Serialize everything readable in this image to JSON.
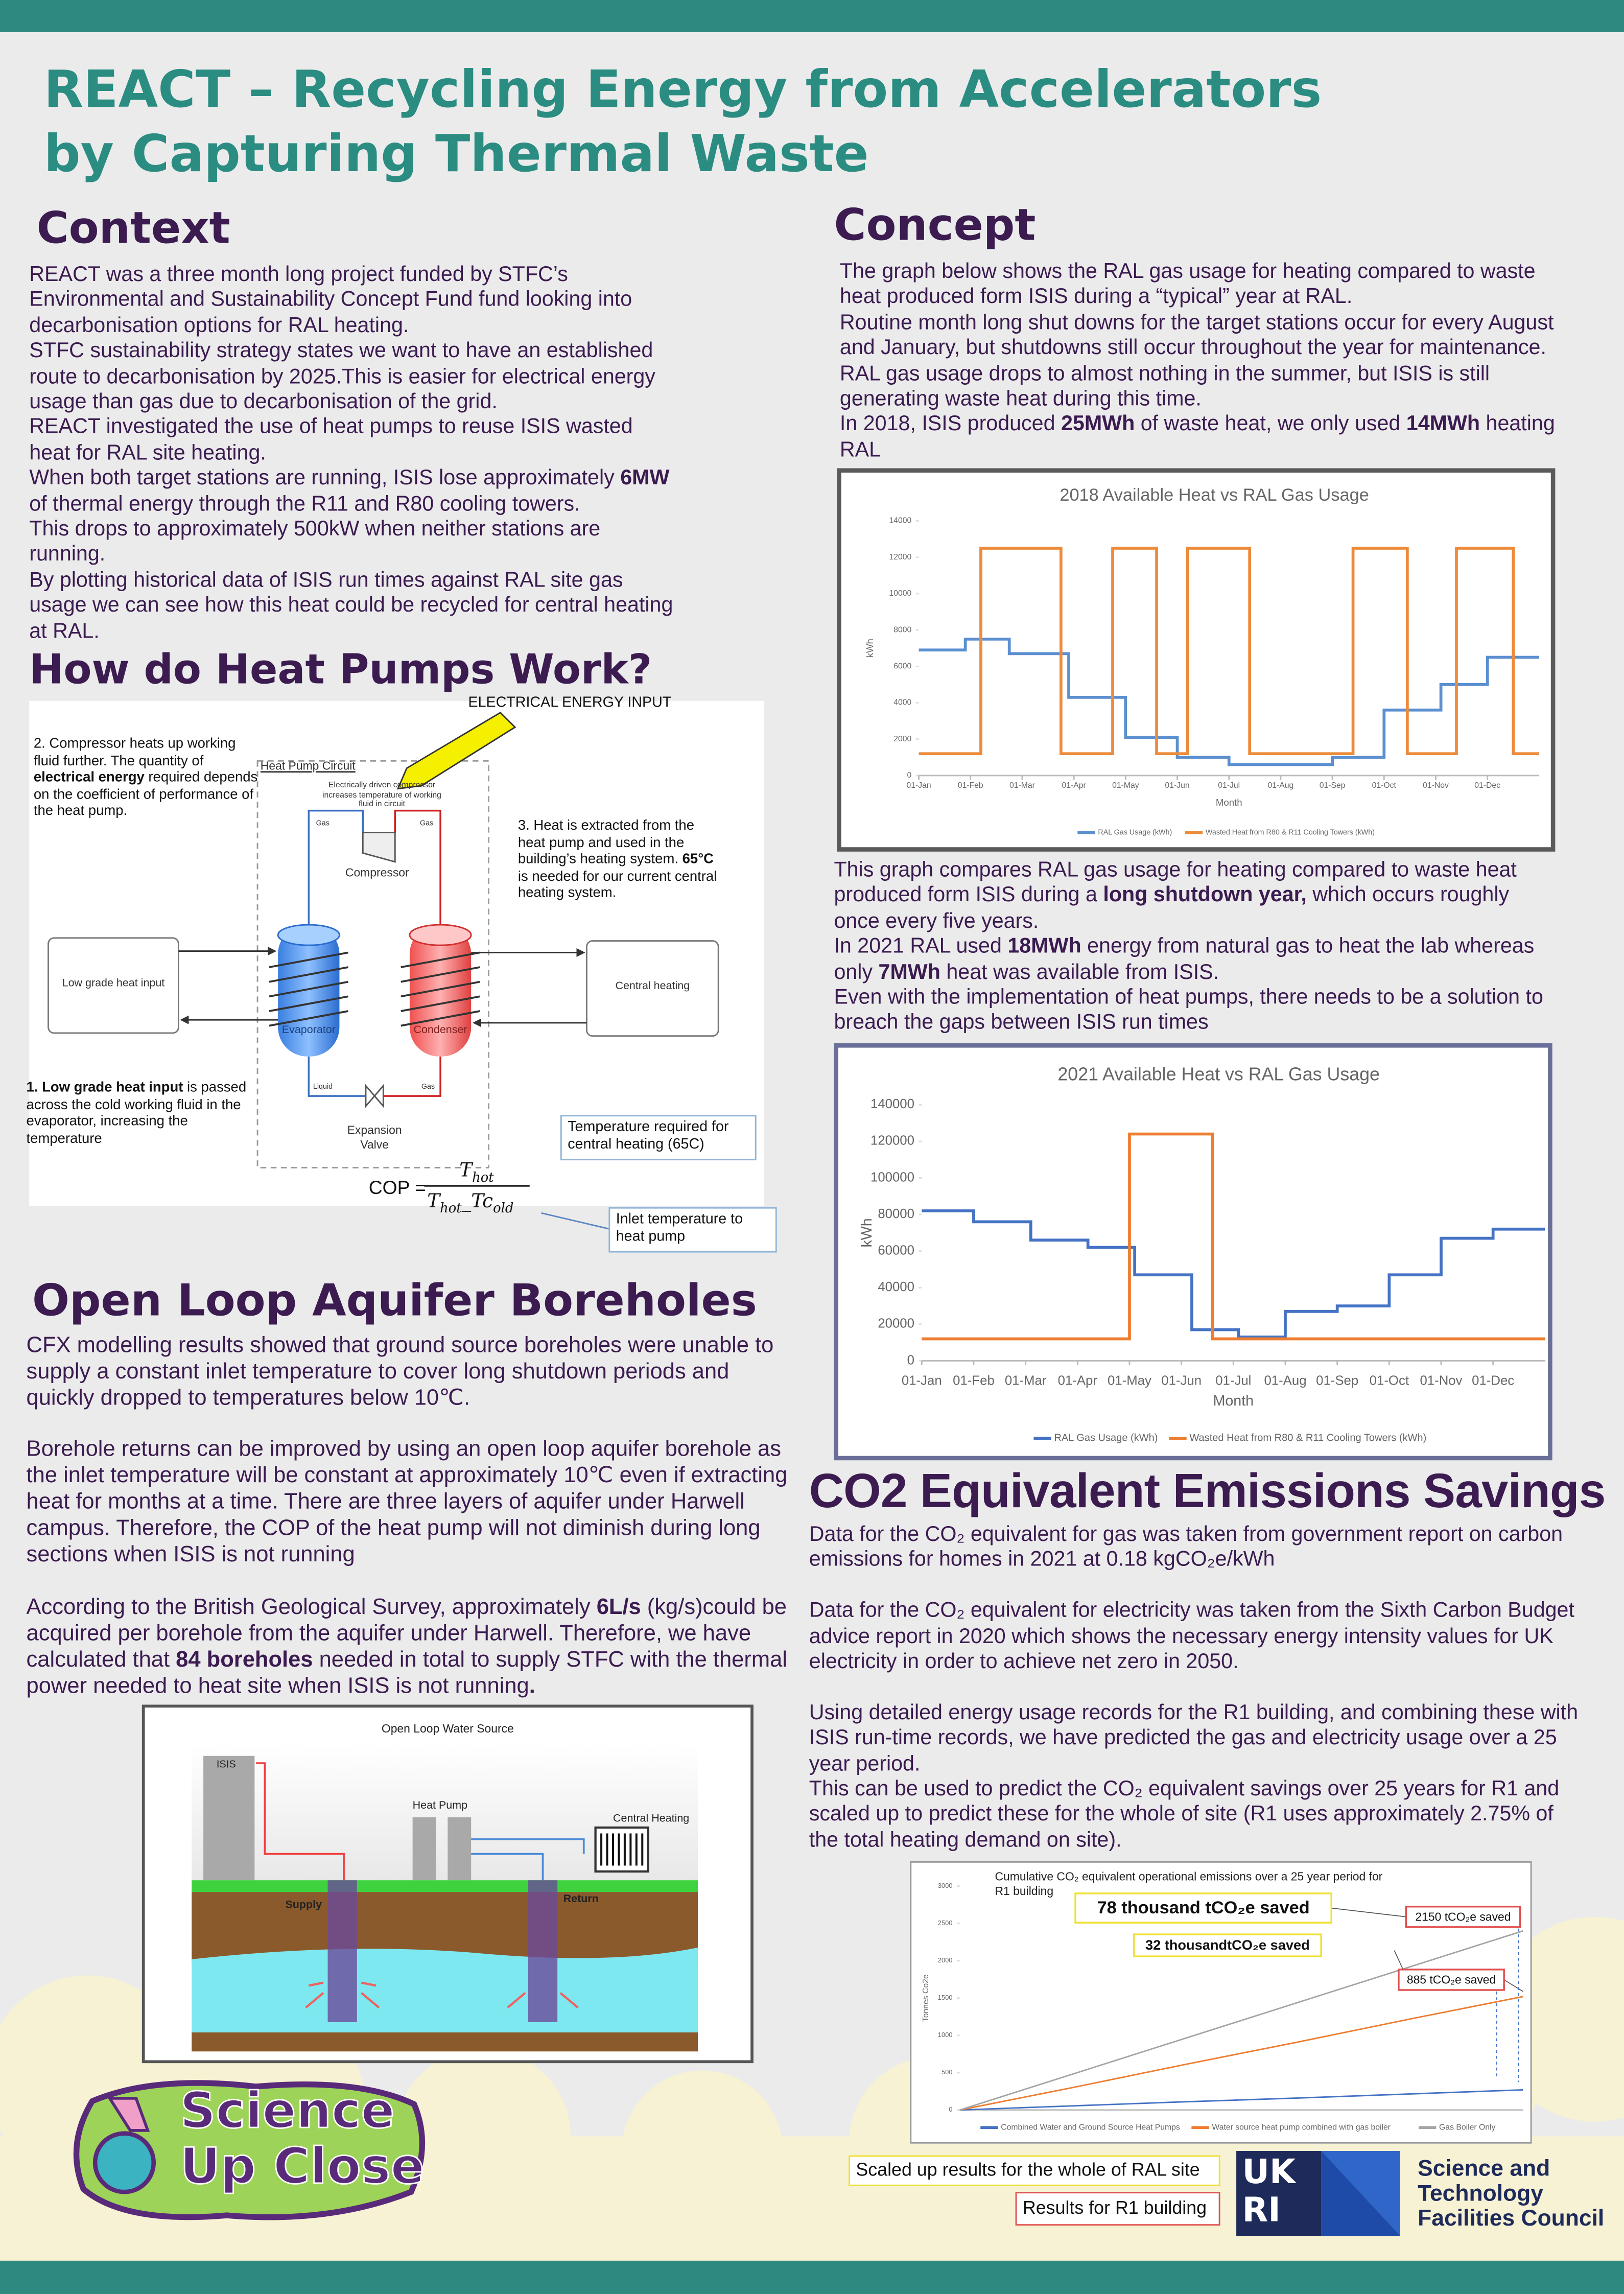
{
  "title": [
    "REACT – Recycling Energy from Accelerators",
    "by Capturing Thermal Waste"
  ],
  "context": {
    "heading": "Context",
    "paragraphs": [
      "REACT was a three month long project funded by STFC’s Environmental and Sustainability Concept Fund fund looking into decarbonisation options for RAL heating.",
      "STFC sustainability strategy states we want to have an established route to decarbonisation by 2025.This is easier for electrical energy usage than gas due to decarbonisation of the grid.",
      "REACT investigated the use of heat pumps to reuse ISIS wasted heat for RAL site heating.",
      [
        "When both target stations are running, ISIS lose approximately ",
        {
          "strong": "6MW"
        },
        " of thermal energy through the R11 and R80 cooling towers."
      ],
      "This drops to approximately 500kW when neither stations are running.",
      "By plotting historical data of ISIS run times against RAL site gas usage we can see how this heat could be recycled for central heating at RAL."
    ]
  },
  "heat_pumps": {
    "heading": "How do Heat Pumps Work?",
    "electrical_input": "ELECTRICAL ENERGY INPUT",
    "step2": [
      "2. Compressor heats up working fluid further. The quantity of ",
      {
        "strong": "electrical energy"
      },
      " required depends on the coefficient of performance of the heat pump."
    ],
    "circuit_label": "Heat Pump Circuit",
    "compressor_note": "Electrically driven compressor increases temperature of working fluid in circuit",
    "gas_in": "Gas",
    "gas_out": "Gas",
    "compressor": "Compressor",
    "step3": [
      "3. Heat is extracted from the heat pump and used in the building’s heating system. ",
      {
        "strong": "65°C"
      },
      " is needed for our current central heating system."
    ],
    "low_grade_box": "Low grade heat input",
    "central_heating_box": "Central heating",
    "evaporator": "Evaporator",
    "condenser": "Condenser",
    "liquid": "Liquid",
    "gas_return": "Gas",
    "expansion_valve": "Expansion Valve",
    "step1": [
      {
        "strong": "1. Low grade heat input"
      },
      " is passed across the cold working fluid in the evaporator, increasing the temperature"
    ],
    "temp_note": "Temperature required for central heating (65C)",
    "inlet_note": "Inlet temperature to heat pump",
    "cop": {
      "lhs": "COP =",
      "num": "T",
      "num_sub": "hot",
      "den": "T",
      "den_sub": "hot",
      "den_op": "_",
      "den2": "Tc",
      "den2_sub": "old"
    }
  },
  "open_loop": {
    "heading": "Open Loop Aquifer Boreholes",
    "paragraphs": [
      "CFX modelling results showed that ground source boreholes were unable to supply a constant inlet temperature to cover long shutdown periods and quickly dropped to temperatures below 10℃.",
      "Borehole returns can be improved by using an open loop aquifer borehole as the inlet temperature will be constant at approximately 10℃ even if extracting heat for months at a time. There are three layers of aquifer under Harwell campus. Therefore, the COP of the heat pump will not diminish during long sections when ISIS is not running",
      [
        "According to the British Geological Survey, approximately ",
        {
          "strong": "6L/s"
        },
        " (kg/s)could be acquired per borehole from the aquifer under Harwell. Therefore, we have calculated that ",
        {
          "strong": "84 boreholes"
        },
        " needed in total to supply STFC with the thermal power needed to heat site when ISIS is not running",
        {
          "strong": "."
        }
      ]
    ],
    "diagram": {
      "title": "Open Loop Water Source",
      "isis": "ISIS",
      "heat_pump": "Heat Pump",
      "central_heating": "Central Heating",
      "supply": "Supply",
      "return": "Return"
    }
  },
  "concept": {
    "heading": "Concept",
    "paragraphs": [
      "The graph below shows the RAL gas usage for heating compared to waste heat produced form ISIS during a “typical” year at RAL.",
      "Routine month long shut downs for the target stations occur for every August and January, but shutdowns still occur throughout the year for maintenance.",
      "RAL gas usage drops to almost nothing in the summer, but ISIS is still generating waste heat during this time.",
      [
        "In 2018, ISIS produced ",
        {
          "strong": "25MWh"
        },
        " of waste heat, we only used ",
        {
          "strong": "14MWh"
        },
        " heating RAL"
      ]
    ],
    "paragraphs2": [
      [
        "This graph compares RAL gas usage for heating compared to waste heat produced form ISIS during a ",
        {
          "strong": "long shutdown year,"
        },
        " which occurs roughly once every five years."
      ],
      [
        "In 2021 RAL used ",
        {
          "strong": "18MWh"
        },
        " energy from natural gas to heat the lab whereas only ",
        {
          "strong": "7MWh"
        },
        " heat was available from ISIS."
      ],
      "Even with the implementation of heat pumps, there needs to be a solution to breach the gaps between ISIS run times"
    ]
  },
  "co2": {
    "heading": "CO2 Equivalent Emissions Savings",
    "paragraphs": [
      "Data for the CO₂ equivalent for gas was taken from government report on carbon emissions for homes in 2021 at 0.18 kgCO₂e/kWh",
      "Data for the CO₂ equivalent for electricity was taken from the Sixth Carbon Budget advice report in 2020 which shows the necessary energy intensity values for UK electricity in order to achieve net zero in 2050.",
      "Using detailed energy usage records for the R1 building, and combining these with ISIS run-time records, we have predicted the gas and electricity usage over a 25 year period.",
      "This can be used to predict the CO₂ equivalent savings over 25 years for R1 and scaled up to predict these for the whole of site (R1 uses approximately 2.75% of the total heating demand on site)."
    ],
    "legend_boxes": [
      "Scaled up results for the whole of RAL site",
      "Results for R1 building"
    ]
  },
  "logos": {
    "science_up_close": [
      "Science",
      "Up Close"
    ],
    "ukri": [
      "UK",
      "RI"
    ],
    "stfc": [
      "Science and",
      "Technology",
      "Facilities Council"
    ]
  },
  "chart_data": [
    {
      "type": "line",
      "title": "2018 Available Heat vs RAL Gas Usage",
      "x_label": "Month",
      "y_label": "kWh",
      "xlim": [
        0,
        12
      ],
      "ylim": [
        0,
        14000
      ],
      "yticks": [
        0,
        2000,
        4000,
        6000,
        8000,
        10000,
        12000,
        14000
      ],
      "xticks": [
        {
          "value": 0,
          "label": "01-Jan"
        },
        {
          "value": 1,
          "label": "01-Feb"
        },
        {
          "value": 2,
          "label": "01-Mar"
        },
        {
          "value": 3,
          "label": "01-Apr"
        },
        {
          "value": 4,
          "label": "01-May"
        },
        {
          "value": 5,
          "label": "01-Jun"
        },
        {
          "value": 6,
          "label": "01-Jul"
        },
        {
          "value": 7,
          "label": "01-Aug"
        },
        {
          "value": 8,
          "label": "01-Sep"
        },
        {
          "value": 9,
          "label": "01-Oct"
        },
        {
          "value": 10,
          "label": "01-Nov"
        },
        {
          "value": 11,
          "label": "01-Dec"
        }
      ],
      "grid": false,
      "legend": "bottom",
      "series": [
        {
          "name": "RAL Gas Usage (kWh)",
          "color": "#5b8fd0",
          "x": [
            0,
            0.9,
            0.9,
            1.75,
            1.75,
            2.9,
            2.9,
            4.0,
            4.0,
            5.0,
            5.0,
            6.0,
            6.0,
            8.0,
            8.0,
            9.0,
            9.0,
            10.1,
            10.1,
            11.0,
            11.0,
            12
          ],
          "values": [
            6900,
            6900,
            7500,
            7500,
            6700,
            6700,
            4300,
            4300,
            2100,
            2100,
            1000,
            1000,
            600,
            600,
            1000,
            1000,
            3600,
            3600,
            5000,
            5000,
            6500,
            6500
          ]
        },
        {
          "name": "Wasted Heat from R80 & R11 Cooling Towers (kWh)",
          "color": "#ed8b3a",
          "x": [
            0,
            1.2,
            1.2,
            2.75,
            2.75,
            3.75,
            3.75,
            4.6,
            4.6,
            5.2,
            5.2,
            6.4,
            6.4,
            8.4,
            8.4,
            9.45,
            9.45,
            10.4,
            10.4,
            11.5,
            11.5,
            12
          ],
          "values": [
            1200,
            1200,
            12500,
            12500,
            1200,
            1200,
            12500,
            12500,
            1200,
            1200,
            12500,
            12500,
            1200,
            1200,
            12500,
            12500,
            1200,
            1200,
            12500,
            12500,
            1200,
            1200
          ]
        }
      ]
    },
    {
      "type": "line",
      "title": "2021 Available Heat vs RAL Gas Usage",
      "x_label": "Month",
      "y_label": "kWh",
      "xlim": [
        0,
        12
      ],
      "ylim": [
        0,
        140000
      ],
      "yticks": [
        0,
        20000,
        40000,
        60000,
        80000,
        100000,
        120000,
        140000
      ],
      "xticks": [
        {
          "value": 0,
          "label": "01-Jan"
        },
        {
          "value": 1,
          "label": "01-Feb"
        },
        {
          "value": 2,
          "label": "01-Mar"
        },
        {
          "value": 3,
          "label": "01-Apr"
        },
        {
          "value": 4,
          "label": "01-May"
        },
        {
          "value": 5,
          "label": "01-Jun"
        },
        {
          "value": 6,
          "label": "01-Jul"
        },
        {
          "value": 7,
          "label": "01-Aug"
        },
        {
          "value": 8,
          "label": "01-Sep"
        },
        {
          "value": 9,
          "label": "01-Oct"
        },
        {
          "value": 10,
          "label": "01-Nov"
        },
        {
          "value": 11,
          "label": "01-Dec"
        }
      ],
      "grid": false,
      "legend": "bottom",
      "series": [
        {
          "name": "RAL Gas Usage (kWh)",
          "color": "#4472c4",
          "x": [
            0,
            1.0,
            1.0,
            2.1,
            2.1,
            3.2,
            3.2,
            4.1,
            4.1,
            5.2,
            5.2,
            6.1,
            6.1,
            7.0,
            7.0,
            8.0,
            8.0,
            9.0,
            9.0,
            10.0,
            10.0,
            11.0,
            11.0,
            12
          ],
          "values": [
            82000,
            82000,
            76000,
            76000,
            66000,
            66000,
            62000,
            62000,
            47000,
            47000,
            17000,
            17000,
            13000,
            13000,
            27000,
            27000,
            30000,
            30000,
            47000,
            47000,
            67000,
            67000,
            72000,
            72000
          ]
        },
        {
          "name": "Wasted Heat from R80 & R11 Cooling Towers (kWh)",
          "color": "#ed7d31",
          "x": [
            0,
            4.0,
            4.0,
            5.6,
            5.6,
            12
          ],
          "values": [
            12000,
            12000,
            124000,
            124000,
            12000,
            12000
          ]
        }
      ]
    },
    {
      "type": "line",
      "title": "Cumulative CO₂ equivalent operational emissions over a 25 year period for R1 building",
      "y_label": "Tonnes Co2e",
      "xlim": [
        0,
        25
      ],
      "ylim": [
        0,
        3000
      ],
      "yticks": [
        0,
        500,
        1000,
        1500,
        2000,
        2500,
        3000
      ],
      "grid": false,
      "legend": "bottom",
      "annotations": [
        "78 thousand tCO₂e saved",
        "32 thousandtCO₂e saved",
        "2150 tCO₂e saved",
        "885 tCO₂e saved"
      ],
      "series": [
        {
          "name": "Combined Water and Ground Source Heat Pumps",
          "color": "#4472c4",
          "x": [
            0,
            5,
            10,
            15,
            20,
            25
          ],
          "values": [
            0,
            55,
            110,
            160,
            215,
            270
          ]
        },
        {
          "name": "Water source heat pump combined with gas boiler",
          "color": "#ed7d31",
          "x": [
            0,
            5,
            10,
            15,
            20,
            25
          ],
          "values": [
            0,
            300,
            610,
            910,
            1220,
            1520
          ]
        },
        {
          "name": "Gas Boiler Only",
          "color": "#a5a5a5",
          "x": [
            0,
            5,
            10,
            15,
            20,
            25
          ],
          "values": [
            0,
            480,
            960,
            1440,
            1920,
            2400
          ]
        }
      ]
    }
  ]
}
